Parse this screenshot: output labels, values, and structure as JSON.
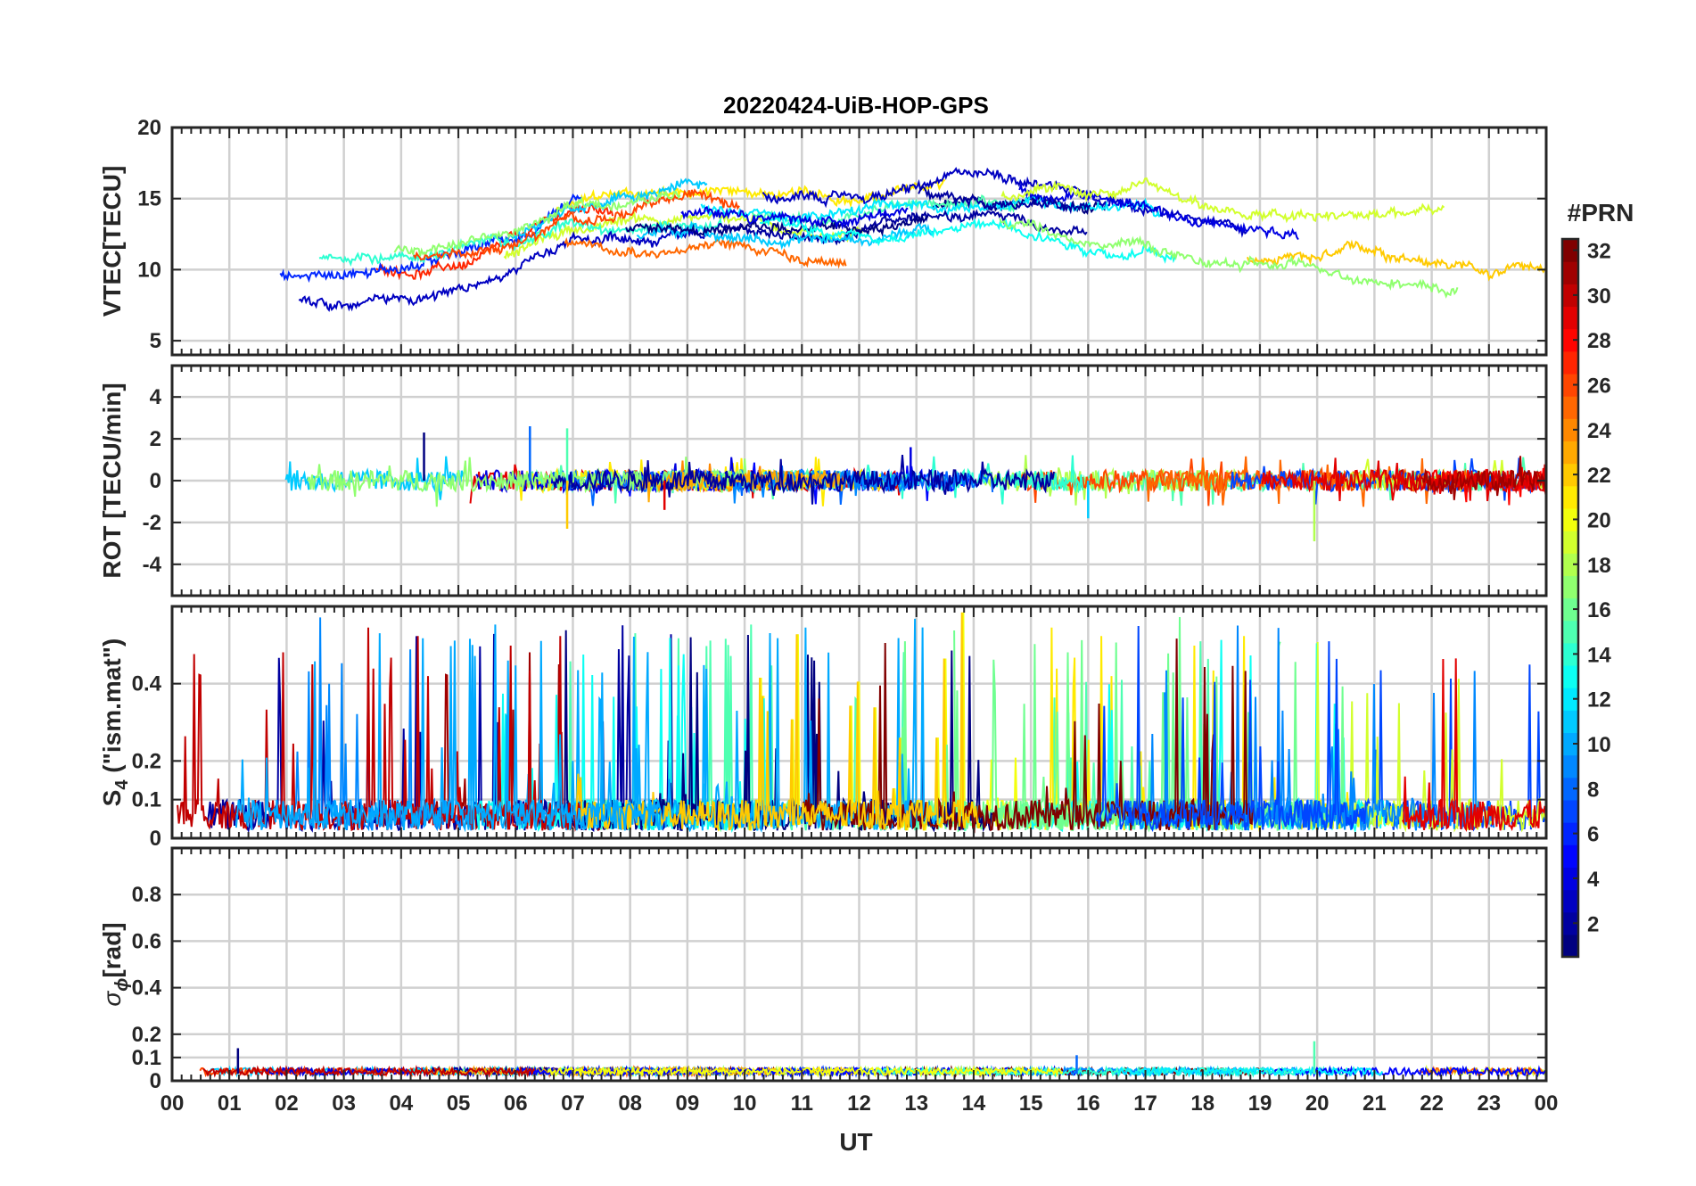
{
  "chart_data": {
    "type": "line",
    "title": "20220424-UiB-HOP-GPS",
    "xlabel": "UT",
    "x_tick_labels": [
      "00",
      "01",
      "02",
      "03",
      "04",
      "05",
      "06",
      "07",
      "08",
      "09",
      "10",
      "11",
      "12",
      "13",
      "14",
      "15",
      "16",
      "17",
      "18",
      "19",
      "20",
      "21",
      "22",
      "23",
      "00"
    ],
    "xlim": [
      0,
      24
    ],
    "grid": true,
    "panels": [
      {
        "id": "vtec",
        "ylabel": "VTEC[TECU]",
        "ylim": [
          4,
          20
        ],
        "yticks": [
          5,
          10,
          15,
          20
        ],
        "series_summary": "VTEC rises from about 8 at 00 UT to 13-15 between 08 and 17 UT, then declines to about 11 by 24 UT",
        "trend": [
          [
            0,
            8
          ],
          [
            1,
            8.5
          ],
          [
            2,
            9
          ],
          [
            3,
            9.5
          ],
          [
            4,
            10
          ],
          [
            5,
            10.5
          ],
          [
            6,
            11.5
          ],
          [
            7,
            13
          ],
          [
            8,
            13.5
          ],
          [
            9,
            14
          ],
          [
            10,
            14
          ],
          [
            11,
            13.5
          ],
          [
            12,
            13.5
          ],
          [
            13,
            14
          ],
          [
            14,
            14.5
          ],
          [
            15,
            14.5
          ],
          [
            16,
            14
          ],
          [
            17,
            14
          ],
          [
            18,
            12.5
          ],
          [
            19,
            12
          ],
          [
            20,
            11.5
          ],
          [
            21,
            11.5
          ],
          [
            22,
            11.5
          ],
          [
            23,
            11
          ],
          [
            24,
            11
          ]
        ],
        "spread": 2.2
      },
      {
        "id": "rot",
        "ylabel": "ROT [TECU/min]",
        "ylim": [
          -5.5,
          5.5
        ],
        "yticks": [
          -4,
          -2,
          0,
          2,
          4
        ],
        "series_summary": "ROT fluctuates around 0 within about ±1 TECU/min, with spikes up to about 2.6 and down to about -2.9",
        "trend": [
          [
            0,
            0
          ],
          [
            24,
            0
          ]
        ],
        "spread": 0.5,
        "spikes": [
          [
            4.4,
            2.3
          ],
          [
            6.25,
            2.6
          ],
          [
            6.9,
            2.5
          ],
          [
            6.9,
            -2.3
          ],
          [
            8.6,
            -1.4
          ],
          [
            12.9,
            1.6
          ],
          [
            16.0,
            -1.8
          ],
          [
            19.95,
            -2.9
          ]
        ]
      },
      {
        "id": "s4",
        "ylabel_main": "S",
        "ylabel_sub": "4",
        "ylabel_rest": " (\"ism.mat\")",
        "ylim": [
          0,
          0.6
        ],
        "yticks_labels": [
          [
            "0",
            "0"
          ],
          [
            "0.1",
            "0.1"
          ],
          [
            "0.2",
            "0.2"
          ],
          [
            "0.4",
            "0.4"
          ]
        ],
        "series_summary": "S4 mostly 0-0.1 with frequent bursts reaching 0.3-0.6, axis clipped at the top",
        "trend": [
          [
            0,
            0.06
          ],
          [
            24,
            0.06
          ]
        ],
        "spread": 0.04
      },
      {
        "id": "sigma",
        "ylabel_main": "σ",
        "ylabel_sub": "ϕ",
        "ylabel_rest": "[rad]",
        "ylim": [
          0,
          1
        ],
        "yticks_labels": [
          [
            "0",
            "0"
          ],
          [
            "0.1",
            "0.1"
          ],
          [
            "0.2",
            "0.2"
          ],
          [
            "0.4",
            "0.4"
          ],
          [
            "0.6",
            "0.6"
          ],
          [
            "0.8",
            "0.8"
          ]
        ],
        "series_summary": "Phase scintillation index stays below about 0.15 all day, typically around 0.03-0.06",
        "trend": [
          [
            0,
            0.04
          ],
          [
            24,
            0.04
          ]
        ],
        "spread": 0.015,
        "spikes": [
          [
            1.15,
            0.14
          ],
          [
            15.8,
            0.11
          ],
          [
            19.95,
            0.17
          ]
        ]
      }
    ],
    "colorbar": {
      "label": "#PRN",
      "range": [
        1,
        32
      ],
      "ticks": [
        2,
        4,
        6,
        8,
        10,
        12,
        14,
        16,
        18,
        20,
        22,
        24,
        26,
        28,
        30,
        32
      ],
      "colormap": "jet"
    }
  }
}
